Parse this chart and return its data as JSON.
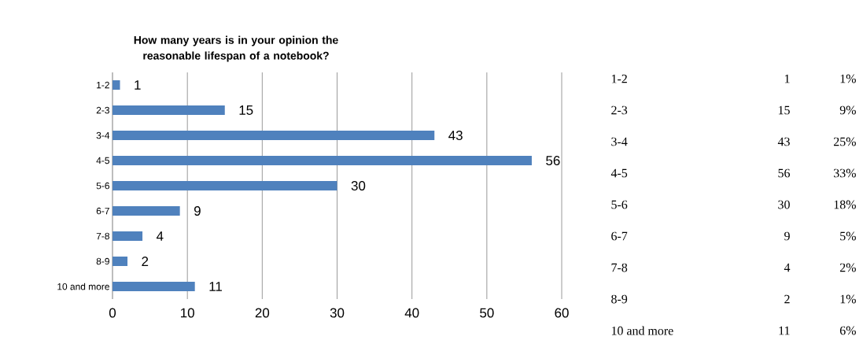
{
  "chart_data": [
    {
      "type": "bar",
      "orientation": "horizontal",
      "title": "How many years is in your opinion the reasonable lifespan of a notebook?",
      "categories": [
        "1-2",
        "2-3",
        "3-4",
        "4-5",
        "5-6",
        "6-7",
        "7-8",
        "8-9",
        "10 and more"
      ],
      "values": [
        1,
        15,
        43,
        56,
        30,
        9,
        4,
        2,
        11
      ],
      "color": "#4f81bd",
      "xlim": [
        0,
        60
      ],
      "xticks": [
        0,
        10,
        20,
        30,
        40,
        50,
        60
      ],
      "grid": "x",
      "data_labels": true
    },
    {
      "type": "other",
      "data_labels": true,
      "categories": [
        "1-2",
        "2-3",
        "3-4",
        "4-5",
        "5-6",
        "6-7",
        "7-8",
        "8-9",
        "10 and more"
      ],
      "values": [
        1,
        15,
        43,
        56,
        30,
        9,
        4,
        2,
        11
      ],
      "annotations": [
        "1%",
        "9%",
        "25%",
        "33%",
        "18%",
        "5%",
        "2%",
        "1%",
        "6%"
      ]
    }
  ]
}
